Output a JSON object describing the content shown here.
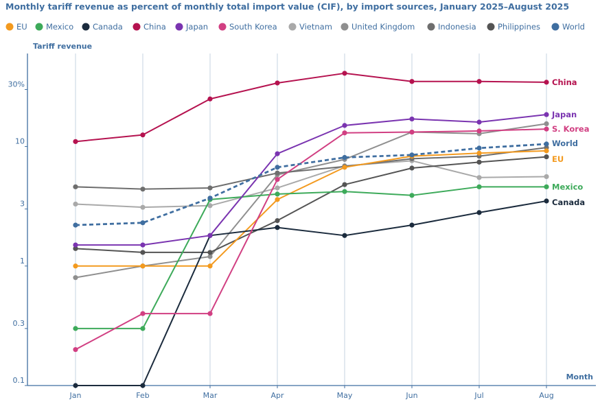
{
  "chart_data": {
    "type": "line",
    "title": "Monthly tariff revenue as percent of monthly total import value (CIF), by import sources, January 2025–August 2025",
    "ylabel": "Tariff revenue",
    "xlabel": "Month",
    "yscale": "log",
    "ylim": [
      0.1,
      60
    ],
    "yticks": [
      {
        "value": 0.1,
        "label": "0.1"
      },
      {
        "value": 0.3,
        "label": "0.3"
      },
      {
        "value": 1,
        "label": "1"
      },
      {
        "value": 3,
        "label": "3"
      },
      {
        "value": 10,
        "label": "10"
      },
      {
        "value": 30,
        "label": "30%"
      }
    ],
    "categories": [
      "Jan",
      "Feb",
      "Mar",
      "Apr",
      "May",
      "Jun",
      "Jul",
      "Aug"
    ],
    "grid": "vertical",
    "legend_position": "top",
    "series": [
      {
        "name": "EU",
        "color": "#f39a1f",
        "end_label": "EU",
        "values": [
          1.0,
          1.0,
          1.0,
          3.6,
          6.7,
          8.3,
          8.8,
          9.2
        ]
      },
      {
        "name": "Mexico",
        "color": "#3daa5a",
        "end_label": "Mexico",
        "values": [
          0.3,
          0.3,
          3.6,
          4.0,
          4.2,
          3.9,
          4.6,
          4.6
        ]
      },
      {
        "name": "Canada",
        "color": "#1b2b3d",
        "end_label": "Canada",
        "values": [
          0.1,
          0.1,
          1.8,
          2.1,
          1.8,
          2.2,
          2.8,
          3.5
        ]
      },
      {
        "name": "China",
        "color": "#b5124f",
        "end_label": "China",
        "values": [
          11.0,
          12.5,
          25.0,
          34.0,
          41.0,
          35.0,
          35.0,
          34.5
        ]
      },
      {
        "name": "Japan",
        "color": "#7a34b0",
        "end_label": "Japan",
        "values": [
          1.5,
          1.5,
          1.8,
          8.7,
          15.0,
          17.0,
          16.0,
          18.5
        ]
      },
      {
        "name": "South Korea",
        "color": "#d13f82",
        "end_label": "S. Korea",
        "values": [
          0.2,
          0.4,
          0.4,
          5.3,
          13.0,
          13.2,
          13.5,
          14.0
        ]
      },
      {
        "name": "Vietnam",
        "color": "#a9a9a9",
        "end_label": "",
        "values": [
          3.3,
          3.1,
          3.2,
          4.5,
          6.9,
          7.6,
          5.5,
          5.6
        ]
      },
      {
        "name": "United Kingdom",
        "color": "#8f8f8f",
        "end_label": "",
        "values": [
          0.8,
          1.0,
          1.2,
          5.8,
          7.8,
          13.2,
          12.8,
          15.5
        ]
      },
      {
        "name": "Indonesia",
        "color": "#6e6e6e",
        "end_label": "",
        "values": [
          4.6,
          4.4,
          4.5,
          6.0,
          6.8,
          7.9,
          8.3,
          9.8
        ]
      },
      {
        "name": "Philippines",
        "color": "#545454",
        "end_label": "",
        "values": [
          1.4,
          1.3,
          1.3,
          2.4,
          4.8,
          6.6,
          7.4,
          8.2
        ]
      },
      {
        "name": "World",
        "color": "#3f6ea0",
        "end_label": "World",
        "dashed": true,
        "values": [
          2.2,
          2.3,
          3.7,
          6.7,
          8.1,
          8.5,
          9.7,
          10.5
        ]
      }
    ]
  }
}
